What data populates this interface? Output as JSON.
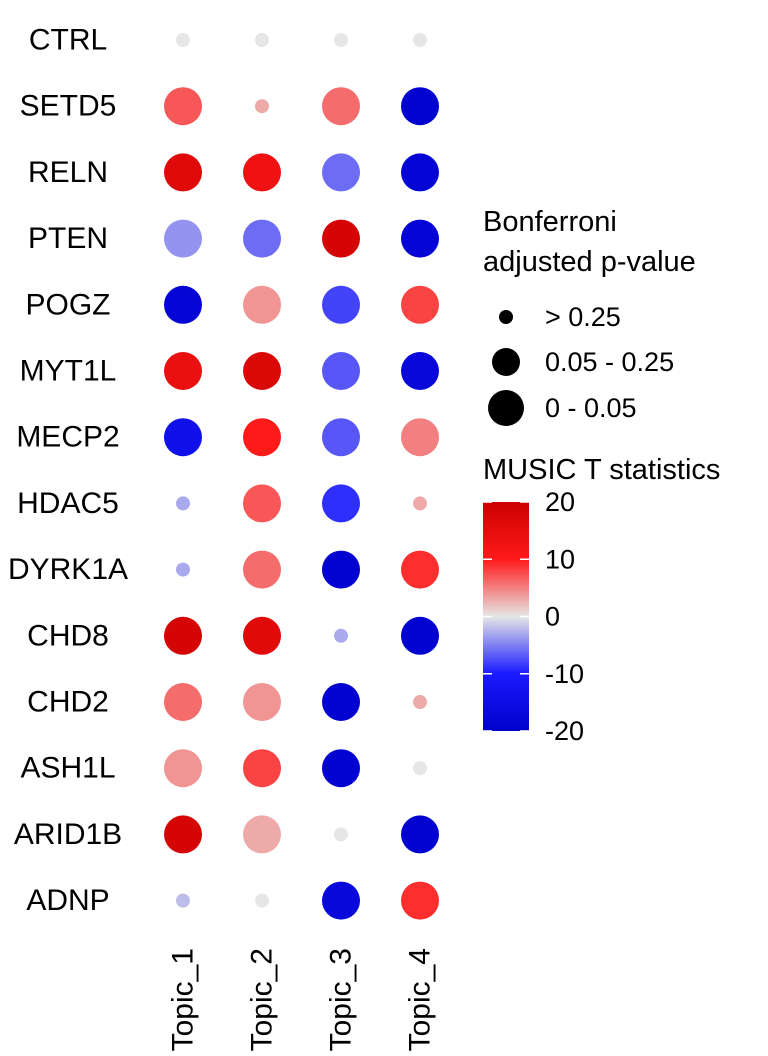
{
  "chart_data": {
    "type": "dot",
    "genes": [
      "CTRL",
      "SETD5",
      "RELN",
      "PTEN",
      "POGZ",
      "MYT1L",
      "MECP2",
      "HDAC5",
      "DYRK1A",
      "CHD8",
      "CHD2",
      "ASH1L",
      "ARID1B",
      "ADNP"
    ],
    "topics": [
      "Topic_1",
      "Topic_2",
      "Topic_3",
      "Topic_4"
    ],
    "t_statistic": [
      [
        0,
        0,
        0,
        0
      ],
      [
        7,
        3,
        6,
        -19
      ],
      [
        16,
        13,
        -6,
        -18
      ],
      [
        -4,
        -6,
        18,
        -18
      ],
      [
        -18,
        4,
        -8,
        8
      ],
      [
        14,
        17,
        -7,
        -17
      ],
      [
        -14,
        10,
        -7,
        5
      ],
      [
        -3,
        7,
        -9,
        3
      ],
      [
        -3,
        6,
        -19,
        9
      ],
      [
        18,
        16,
        -3,
        -19
      ],
      [
        6,
        4,
        -19,
        3
      ],
      [
        4,
        8,
        -19,
        0
      ],
      [
        18,
        3,
        0,
        -19
      ],
      [
        -2,
        0,
        -17,
        9
      ]
    ],
    "p_value_bin": [
      [
        "> 0.25",
        "> 0.25",
        "> 0.25",
        "> 0.25"
      ],
      [
        "0 - 0.05",
        "> 0.25",
        "0 - 0.05",
        "0 - 0.05"
      ],
      [
        "0 - 0.05",
        "0 - 0.05",
        "0 - 0.05",
        "0 - 0.05"
      ],
      [
        "0 - 0.05",
        "0 - 0.05",
        "0 - 0.05",
        "0 - 0.05"
      ],
      [
        "0 - 0.05",
        "0 - 0.05",
        "0 - 0.05",
        "0 - 0.05"
      ],
      [
        "0 - 0.05",
        "0 - 0.05",
        "0 - 0.05",
        "0 - 0.05"
      ],
      [
        "0 - 0.05",
        "0 - 0.05",
        "0 - 0.05",
        "0 - 0.05"
      ],
      [
        "> 0.25",
        "0 - 0.05",
        "0 - 0.05",
        "> 0.25"
      ],
      [
        "> 0.25",
        "0 - 0.05",
        "0 - 0.05",
        "0 - 0.05"
      ],
      [
        "0 - 0.05",
        "0 - 0.05",
        "> 0.25",
        "0 - 0.05"
      ],
      [
        "0 - 0.05",
        "0 - 0.05",
        "0 - 0.05",
        "> 0.25"
      ],
      [
        "0 - 0.05",
        "0 - 0.05",
        "0 - 0.05",
        "> 0.25"
      ],
      [
        "0 - 0.05",
        "0 - 0.05",
        "> 0.25",
        "0 - 0.05"
      ],
      [
        "> 0.25",
        "> 0.25",
        "0 - 0.05",
        "0 - 0.05"
      ]
    ],
    "size_legend": {
      "title_line1": "Bonferroni",
      "title_line2": "adjusted p-value",
      "entries": [
        "> 0.25",
        "0.05 - 0.25",
        "0 - 0.05"
      ]
    },
    "color_legend": {
      "title": "MUSIC T statistics",
      "ticks": [
        "20",
        "10",
        "0",
        "-10",
        "-20"
      ],
      "tick_values": [
        20,
        10,
        0,
        -10,
        -20
      ],
      "limits": [
        -20,
        20
      ]
    },
    "colors": {
      "high": "#cc0000",
      "mid_high": "#ff1a1a",
      "mid": "#e6e6e6",
      "mid_low": "#1a1aff",
      "low": "#0000cc"
    },
    "grid": false,
    "legend_position": "right"
  }
}
